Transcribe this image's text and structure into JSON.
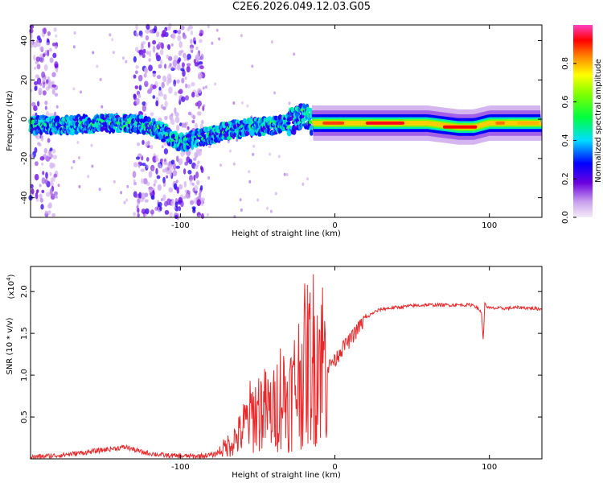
{
  "title": "C2E6.2026.049.12.03.G05",
  "colorbar": {
    "label": "Normalized spectral amplitude",
    "ticks": [
      "0.0",
      "0.2",
      "0.4",
      "0.6",
      "0.8"
    ],
    "tick_values": [
      0.0,
      0.2,
      0.4,
      0.6,
      0.8
    ],
    "range": [
      0,
      1
    ]
  },
  "chart_data": [
    {
      "type": "heatmap",
      "title": "",
      "xlabel": "Height of straight line (km)",
      "ylabel": "Frequency (Hz)",
      "xlim": [
        -197,
        134
      ],
      "ylim": [
        -50,
        48
      ],
      "x_ticks": [
        -100,
        0,
        100
      ],
      "x_tick_labels": [
        "-100",
        "0",
        "100"
      ],
      "y_ticks": [
        -40,
        -20,
        0,
        20,
        40
      ],
      "y_tick_labels": [
        "-40",
        "-20",
        "0",
        "20",
        "40"
      ],
      "ridge_frequency": {
        "x": [
          -197,
          -170,
          -150,
          -130,
          -115,
          -100,
          -90,
          -80,
          -65,
          -50,
          -35,
          -25,
          -20,
          -15,
          -5,
          5,
          20,
          40,
          60,
          80,
          90,
          100,
          110,
          120,
          134
        ],
        "y": [
          -3,
          -3,
          -2,
          -2,
          -5,
          -12,
          -10,
          -8,
          -5,
          -4,
          -3,
          0,
          3,
          -2,
          -2,
          -2,
          -2,
          -2,
          -2,
          -4,
          -4,
          -2,
          -2,
          -2,
          -2
        ]
      },
      "noise_bands": [
        {
          "x_from": -197,
          "x_to": -180
        },
        {
          "x_from": -130,
          "x_to": -85
        }
      ]
    },
    {
      "type": "line",
      "title": "",
      "xlabel": "Height of straight line (km)",
      "ylabel": "SNR (10 * v/v)",
      "y_scale_label": "(x10",
      "y_scale_exponent": "4",
      "xlim": [
        -197,
        134
      ],
      "ylim": [
        0,
        2.3
      ],
      "x_ticks": [
        -100,
        0,
        100
      ],
      "x_tick_labels": [
        "-100",
        "0",
        "100"
      ],
      "y_ticks": [
        0.5,
        1.0,
        1.5,
        2.0
      ],
      "y_tick_labels": [
        "0.5",
        "1.0",
        "1.5",
        "2.0"
      ],
      "series": [
        {
          "name": "SNR",
          "color": "#e8292b",
          "x": [
            -197,
            -180,
            -160,
            -145,
            -135,
            -125,
            -110,
            -90,
            -78,
            -70,
            -62,
            -55,
            -48,
            -40,
            -35,
            -30,
            -25,
            -20,
            -15,
            -10,
            -5,
            0,
            5,
            10,
            15,
            20,
            25,
            30,
            40,
            50,
            60,
            70,
            80,
            90,
            95,
            96,
            97,
            100,
            110,
            120,
            134
          ],
          "y": [
            0.02,
            0.04,
            0.08,
            0.12,
            0.14,
            0.08,
            0.04,
            0.03,
            0.05,
            0.15,
            0.28,
            0.5,
            0.6,
            0.55,
            0.8,
            0.7,
            0.9,
            1.1,
            1.2,
            1.3,
            1.1,
            1.2,
            1.35,
            1.45,
            1.58,
            1.68,
            1.75,
            1.79,
            1.81,
            1.83,
            1.84,
            1.84,
            1.84,
            1.84,
            1.75,
            1.4,
            1.85,
            1.8,
            1.8,
            1.81,
            1.79
          ]
        }
      ]
    }
  ]
}
